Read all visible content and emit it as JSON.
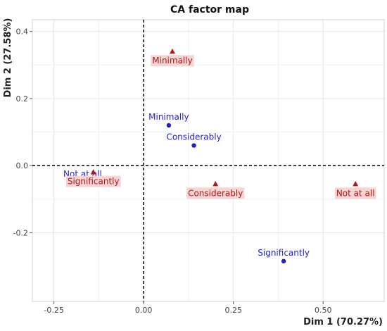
{
  "chart_data": {
    "type": "scatter",
    "title": "CA factor map",
    "xlabel": "Dim 1 (70.27%)",
    "ylabel": "Dim 2 (27.58%)",
    "xlim": [
      -0.31,
      0.67
    ],
    "ylim": [
      -0.405,
      0.435
    ],
    "xticks": [
      -0.25,
      0.0,
      0.25,
      0.5
    ],
    "xtick_labels": [
      "-0.25",
      "0.00",
      "0.25",
      "0.50"
    ],
    "yticks": [
      -0.2,
      0.0,
      0.2,
      0.4
    ],
    "ytick_labels": [
      "-0.2",
      "0.0",
      "0.2",
      "0.4"
    ],
    "grid": true,
    "reference_lines": {
      "x": 0,
      "y": 0
    },
    "colors": {
      "row": "#1f1fcc",
      "col": "#b01818",
      "col_label_bg": "#f5d4d4",
      "row_label_bg": "#d6e4f8"
    },
    "series": [
      {
        "marker": "circle",
        "color": "#1f1fcc",
        "points": [
          {
            "label": "Minimally",
            "x": 0.07,
            "y": 0.12
          },
          {
            "label": "Considerably",
            "x": 0.14,
            "y": 0.06
          },
          {
            "label": "Not at all",
            "x": -0.17,
            "y": -0.05
          },
          {
            "label": "Significantly",
            "x": 0.39,
            "y": -0.285
          }
        ]
      },
      {
        "marker": "triangle",
        "color": "#b01818",
        "points": [
          {
            "label": "Minimally",
            "x": 0.08,
            "y": 0.34
          },
          {
            "label": "Significantly",
            "x": -0.14,
            "y": -0.02
          },
          {
            "label": "Considerably",
            "x": 0.2,
            "y": -0.055
          },
          {
            "label": "Not at all",
            "x": 0.59,
            "y": -0.055
          }
        ]
      }
    ]
  }
}
